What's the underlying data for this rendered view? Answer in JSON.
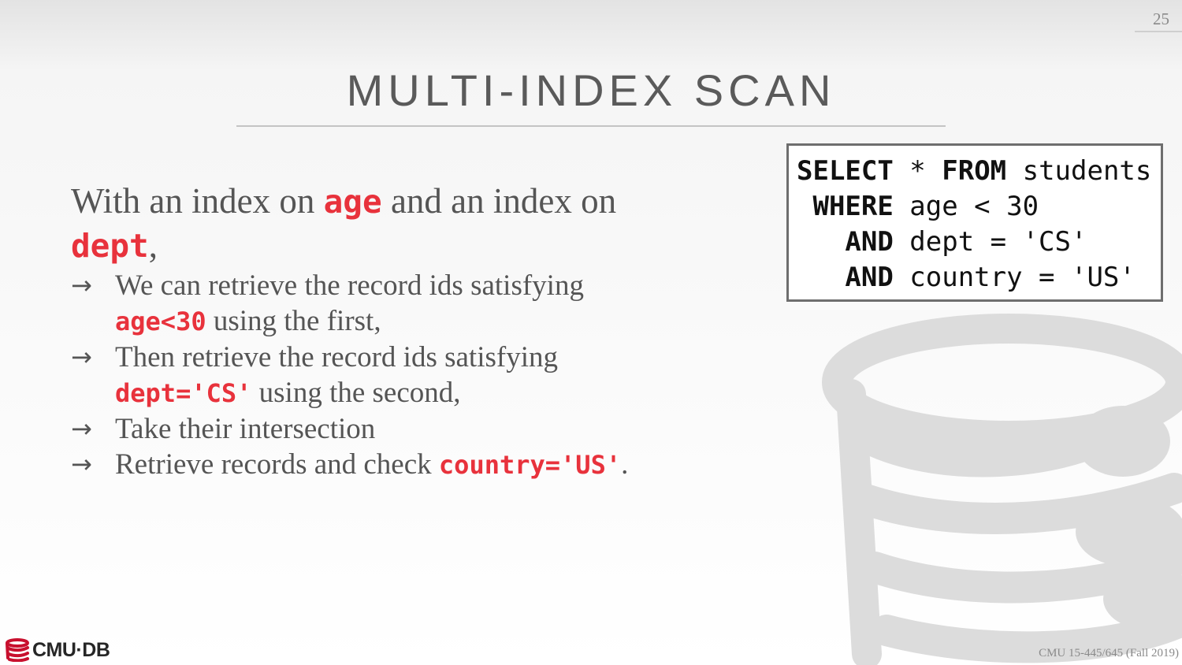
{
  "slide": {
    "page_number": "25",
    "title": "MULTI-INDEX SCAN"
  },
  "body": {
    "intro": {
      "part1": "With an index on ",
      "code1": "age",
      "part2": " and an index on ",
      "code2": "dept",
      "part3": ","
    },
    "bullets": [
      {
        "arrow": "→",
        "before": "We can retrieve the record ids satisfying ",
        "code": "age<30",
        "after": " using the first,"
      },
      {
        "arrow": "→",
        "before": "Then retrieve the record ids satisfying ",
        "code": "dept='CS'",
        "after": " using the second,"
      },
      {
        "arrow": "→",
        "before": "Take their intersection",
        "code": "",
        "after": ""
      },
      {
        "arrow": "→",
        "before": "Retrieve records and check ",
        "code": "country='US'",
        "after": "."
      }
    ]
  },
  "sql": {
    "lines": [
      {
        "keyword": "SELECT",
        "rest": " * FROM students"
      },
      {
        "keyword": " WHERE",
        "rest": " age < 30"
      },
      {
        "keyword": "   AND",
        "rest": " dept = 'CS'"
      },
      {
        "keyword": "   AND",
        "rest": " country = 'US'"
      }
    ],
    "from_keyword": "FROM"
  },
  "footer": {
    "logo_text": "CMU·DB",
    "course": "CMU 15-445/645 (Fall 2019)"
  },
  "colors": {
    "accent_code": "#e8323c",
    "body_text": "#555555",
    "title_text": "#5a5a5a"
  },
  "icons": {
    "background": "database-cylinder-icon",
    "footer": "cmu-db-logo-icon"
  }
}
